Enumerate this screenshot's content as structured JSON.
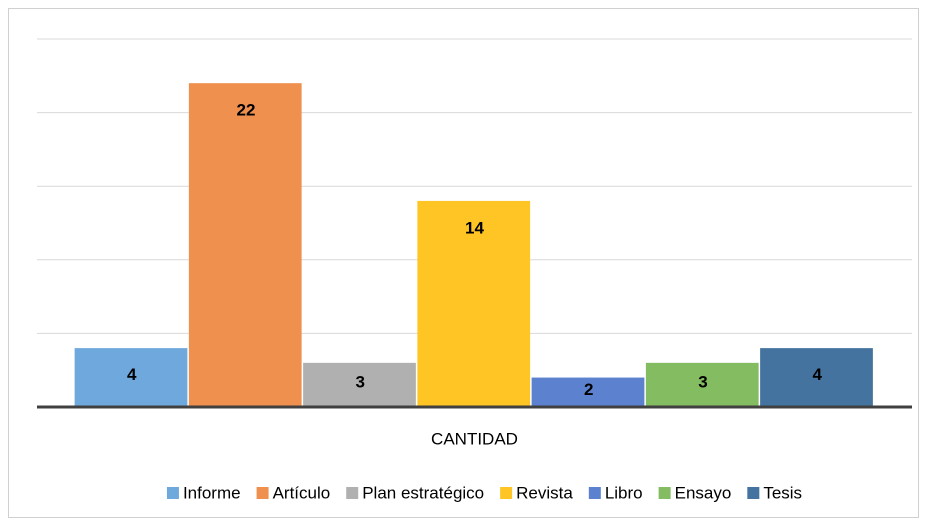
{
  "chart_data": {
    "type": "bar",
    "categories": [
      "CANTIDAD"
    ],
    "series": [
      {
        "name": "Informe",
        "color": "#6fa8dc",
        "values": [
          4
        ]
      },
      {
        "name": "Artículo",
        "color": "#f0904f",
        "values": [
          22
        ]
      },
      {
        "name": "Plan estratégico",
        "color": "#b0b0b0",
        "values": [
          3
        ]
      },
      {
        "name": "Revista",
        "color": "#ffc525",
        "values": [
          14
        ]
      },
      {
        "name": "Libro",
        "color": "#5b81cf",
        "values": [
          2
        ]
      },
      {
        "name": "Ensayo",
        "color": "#84bc62",
        "values": [
          3
        ]
      },
      {
        "name": "Tesis",
        "color": "#44739f",
        "values": [
          4
        ]
      }
    ],
    "ylim": [
      0,
      25
    ],
    "yticks": [
      0,
      5,
      10,
      15,
      20,
      25
    ],
    "grid": true,
    "legend": "bottom"
  }
}
